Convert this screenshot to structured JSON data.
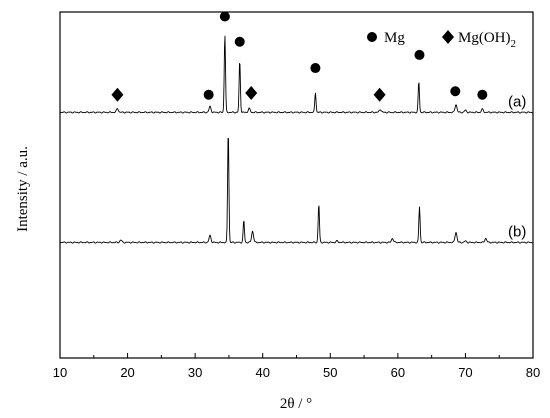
{
  "chart_data": {
    "type": "line",
    "xlabel": "2θ / °",
    "ylabel": "Intensity / a.u.",
    "xlim": [
      10,
      80
    ],
    "x_ticks": [
      10,
      20,
      30,
      40,
      50,
      60,
      70,
      80
    ],
    "x_tick_labels": [
      "10",
      "20",
      "30",
      "40",
      "50",
      "60",
      "70",
      "80"
    ],
    "y_ticks_shown": false,
    "grid": false,
    "legend": {
      "placement": "top-right",
      "entries": [
        {
          "symbol": "circle",
          "label": "Mg"
        },
        {
          "symbol": "diamond",
          "label_base": "Mg(OH)",
          "label_subscript": "2"
        }
      ]
    },
    "series": [
      {
        "name": "(a)",
        "baseline": 0.71,
        "peaks": [
          {
            "x": 18.5,
            "h": 0.011
          },
          {
            "x": 32.2,
            "h": 0.017
          },
          {
            "x": 34.4,
            "h": 0.226
          },
          {
            "x": 36.6,
            "h": 0.151
          },
          {
            "x": 38.0,
            "h": 0.011
          },
          {
            "x": 47.8,
            "h": 0.057
          },
          {
            "x": 57.4,
            "h": 0.009
          },
          {
            "x": 63.1,
            "h": 0.089
          },
          {
            "x": 68.6,
            "h": 0.023
          },
          {
            "x": 70.0,
            "h": 0.006
          },
          {
            "x": 72.5,
            "h": 0.009
          }
        ]
      },
      {
        "name": "(b)",
        "baseline": 0.334,
        "peaks": [
          {
            "x": 19.0,
            "h": 0.007
          },
          {
            "x": 32.2,
            "h": 0.02
          },
          {
            "x": 34.9,
            "h": 0.327
          },
          {
            "x": 37.2,
            "h": 0.064
          },
          {
            "x": 38.5,
            "h": 0.033
          },
          {
            "x": 48.3,
            "h": 0.111
          },
          {
            "x": 51.0,
            "h": 0.004
          },
          {
            "x": 59.2,
            "h": 0.012
          },
          {
            "x": 63.2,
            "h": 0.103
          },
          {
            "x": 68.6,
            "h": 0.03
          },
          {
            "x": 70.0,
            "h": 0.004
          },
          {
            "x": 73.0,
            "h": 0.012
          }
        ]
      }
    ],
    "phase_markers": [
      {
        "phase": "Mg(OH)2",
        "symbol": "diamond",
        "x": 18.5,
        "y": 0.761
      },
      {
        "phase": "Mg",
        "symbol": "circle",
        "x": 32.0,
        "y": 0.761
      },
      {
        "phase": "Mg",
        "symbol": "circle",
        "x": 34.4,
        "y": 0.987
      },
      {
        "phase": "Mg",
        "symbol": "circle",
        "x": 36.6,
        "y": 0.914
      },
      {
        "phase": "Mg(OH)2",
        "symbol": "diamond",
        "x": 38.3,
        "y": 0.766
      },
      {
        "phase": "Mg",
        "symbol": "circle",
        "x": 47.8,
        "y": 0.838
      },
      {
        "phase": "Mg(OH)2",
        "symbol": "diamond",
        "x": 57.3,
        "y": 0.761
      },
      {
        "phase": "Mg",
        "symbol": "circle",
        "x": 63.2,
        "y": 0.876
      },
      {
        "phase": "Mg",
        "symbol": "circle",
        "x": 68.5,
        "y": 0.771
      },
      {
        "phase": "Mg",
        "symbol": "circle",
        "x": 72.5,
        "y": 0.761
      }
    ]
  }
}
